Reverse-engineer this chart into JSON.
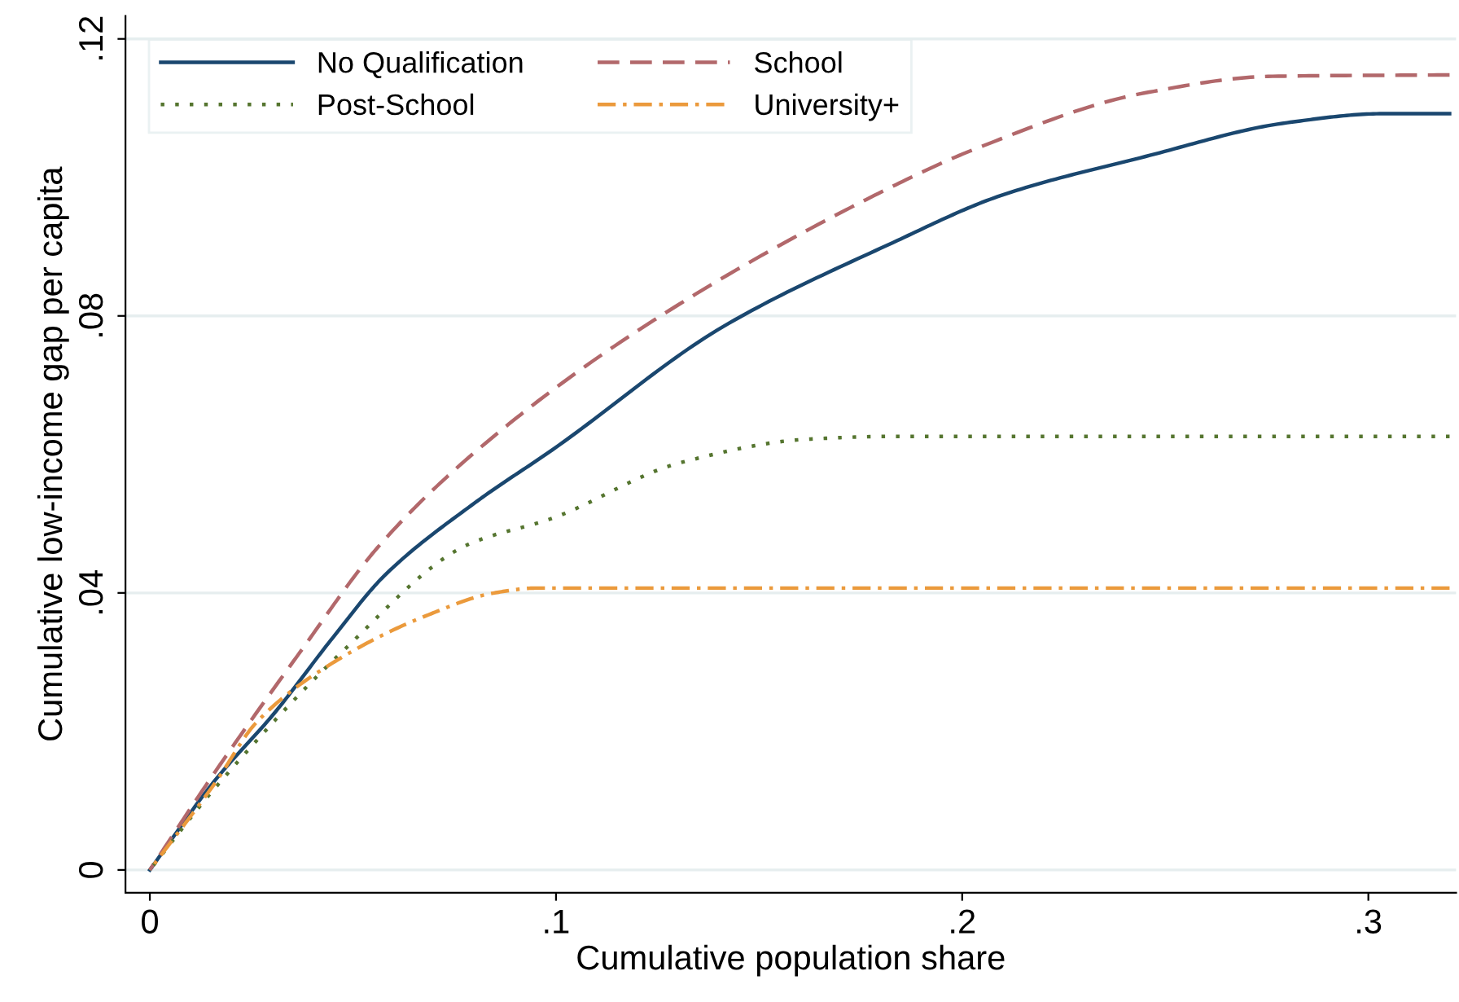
{
  "chart_data": {
    "type": "line",
    "xlabel": "Cumulative population share",
    "ylabel": "Cumulative low-income gap per capita",
    "xlim": [
      -0.006,
      0.3216
    ],
    "ylim": [
      -0.0033,
      0.1233
    ],
    "xticks": [
      {
        "value": 0,
        "label": "0"
      },
      {
        "value": 0.1,
        "label": ".1"
      },
      {
        "value": 0.2,
        "label": ".2"
      },
      {
        "value": 0.3,
        "label": ".3"
      }
    ],
    "yticks": [
      {
        "value": 0,
        "label": "0"
      },
      {
        "value": 0.04,
        "label": ".04"
      },
      {
        "value": 0.08,
        "label": ".08"
      },
      {
        "value": 0.12,
        "label": ".12"
      }
    ],
    "grid": "y",
    "legend": "top left",
    "series": [
      {
        "name": "No Qualification",
        "color": "#1a476f",
        "line_style": "solid",
        "x": [
          0,
          0.016,
          0.0306,
          0.045,
          0.0576,
          0.08,
          0.0992,
          0.141,
          0.183,
          0.2096,
          0.245,
          0.28,
          0.3036,
          0.32
        ],
        "values": [
          0,
          0.0129,
          0.0226,
          0.0335,
          0.0424,
          0.053,
          0.0607,
          0.0784,
          0.0906,
          0.0974,
          0.103,
          0.1079,
          0.1092,
          0.1092
        ]
      },
      {
        "name": "School",
        "color": "#b2686b",
        "line_style": "dashed",
        "x": [
          0,
          0.016,
          0.0368,
          0.056,
          0.0784,
          0.1202,
          0.1784,
          0.2036,
          0.245,
          0.2764,
          0.32
        ],
        "values": [
          0,
          0.0141,
          0.0313,
          0.0465,
          0.0595,
          0.0779,
          0.0974,
          0.1042,
          0.1122,
          0.1146,
          0.1148
        ]
      },
      {
        "name": "Post-School",
        "color": "#55752f",
        "line_style": "dotted",
        "x": [
          0,
          0.016,
          0.047,
          0.0784,
          0.0992,
          0.1306,
          0.162,
          0.183,
          0.32
        ],
        "values": [
          0,
          0.0118,
          0.0313,
          0.047,
          0.0508,
          0.0588,
          0.0622,
          0.0626,
          0.0626
        ]
      },
      {
        "name": "University+",
        "color": "#eb9a3c",
        "line_style": "dashdot",
        "x": [
          0,
          0.016,
          0.0264,
          0.047,
          0.068,
          0.0848,
          0.0952,
          0.32
        ],
        "values": [
          0,
          0.0125,
          0.0214,
          0.0306,
          0.0367,
          0.04,
          0.0407,
          0.0407
        ]
      }
    ]
  }
}
